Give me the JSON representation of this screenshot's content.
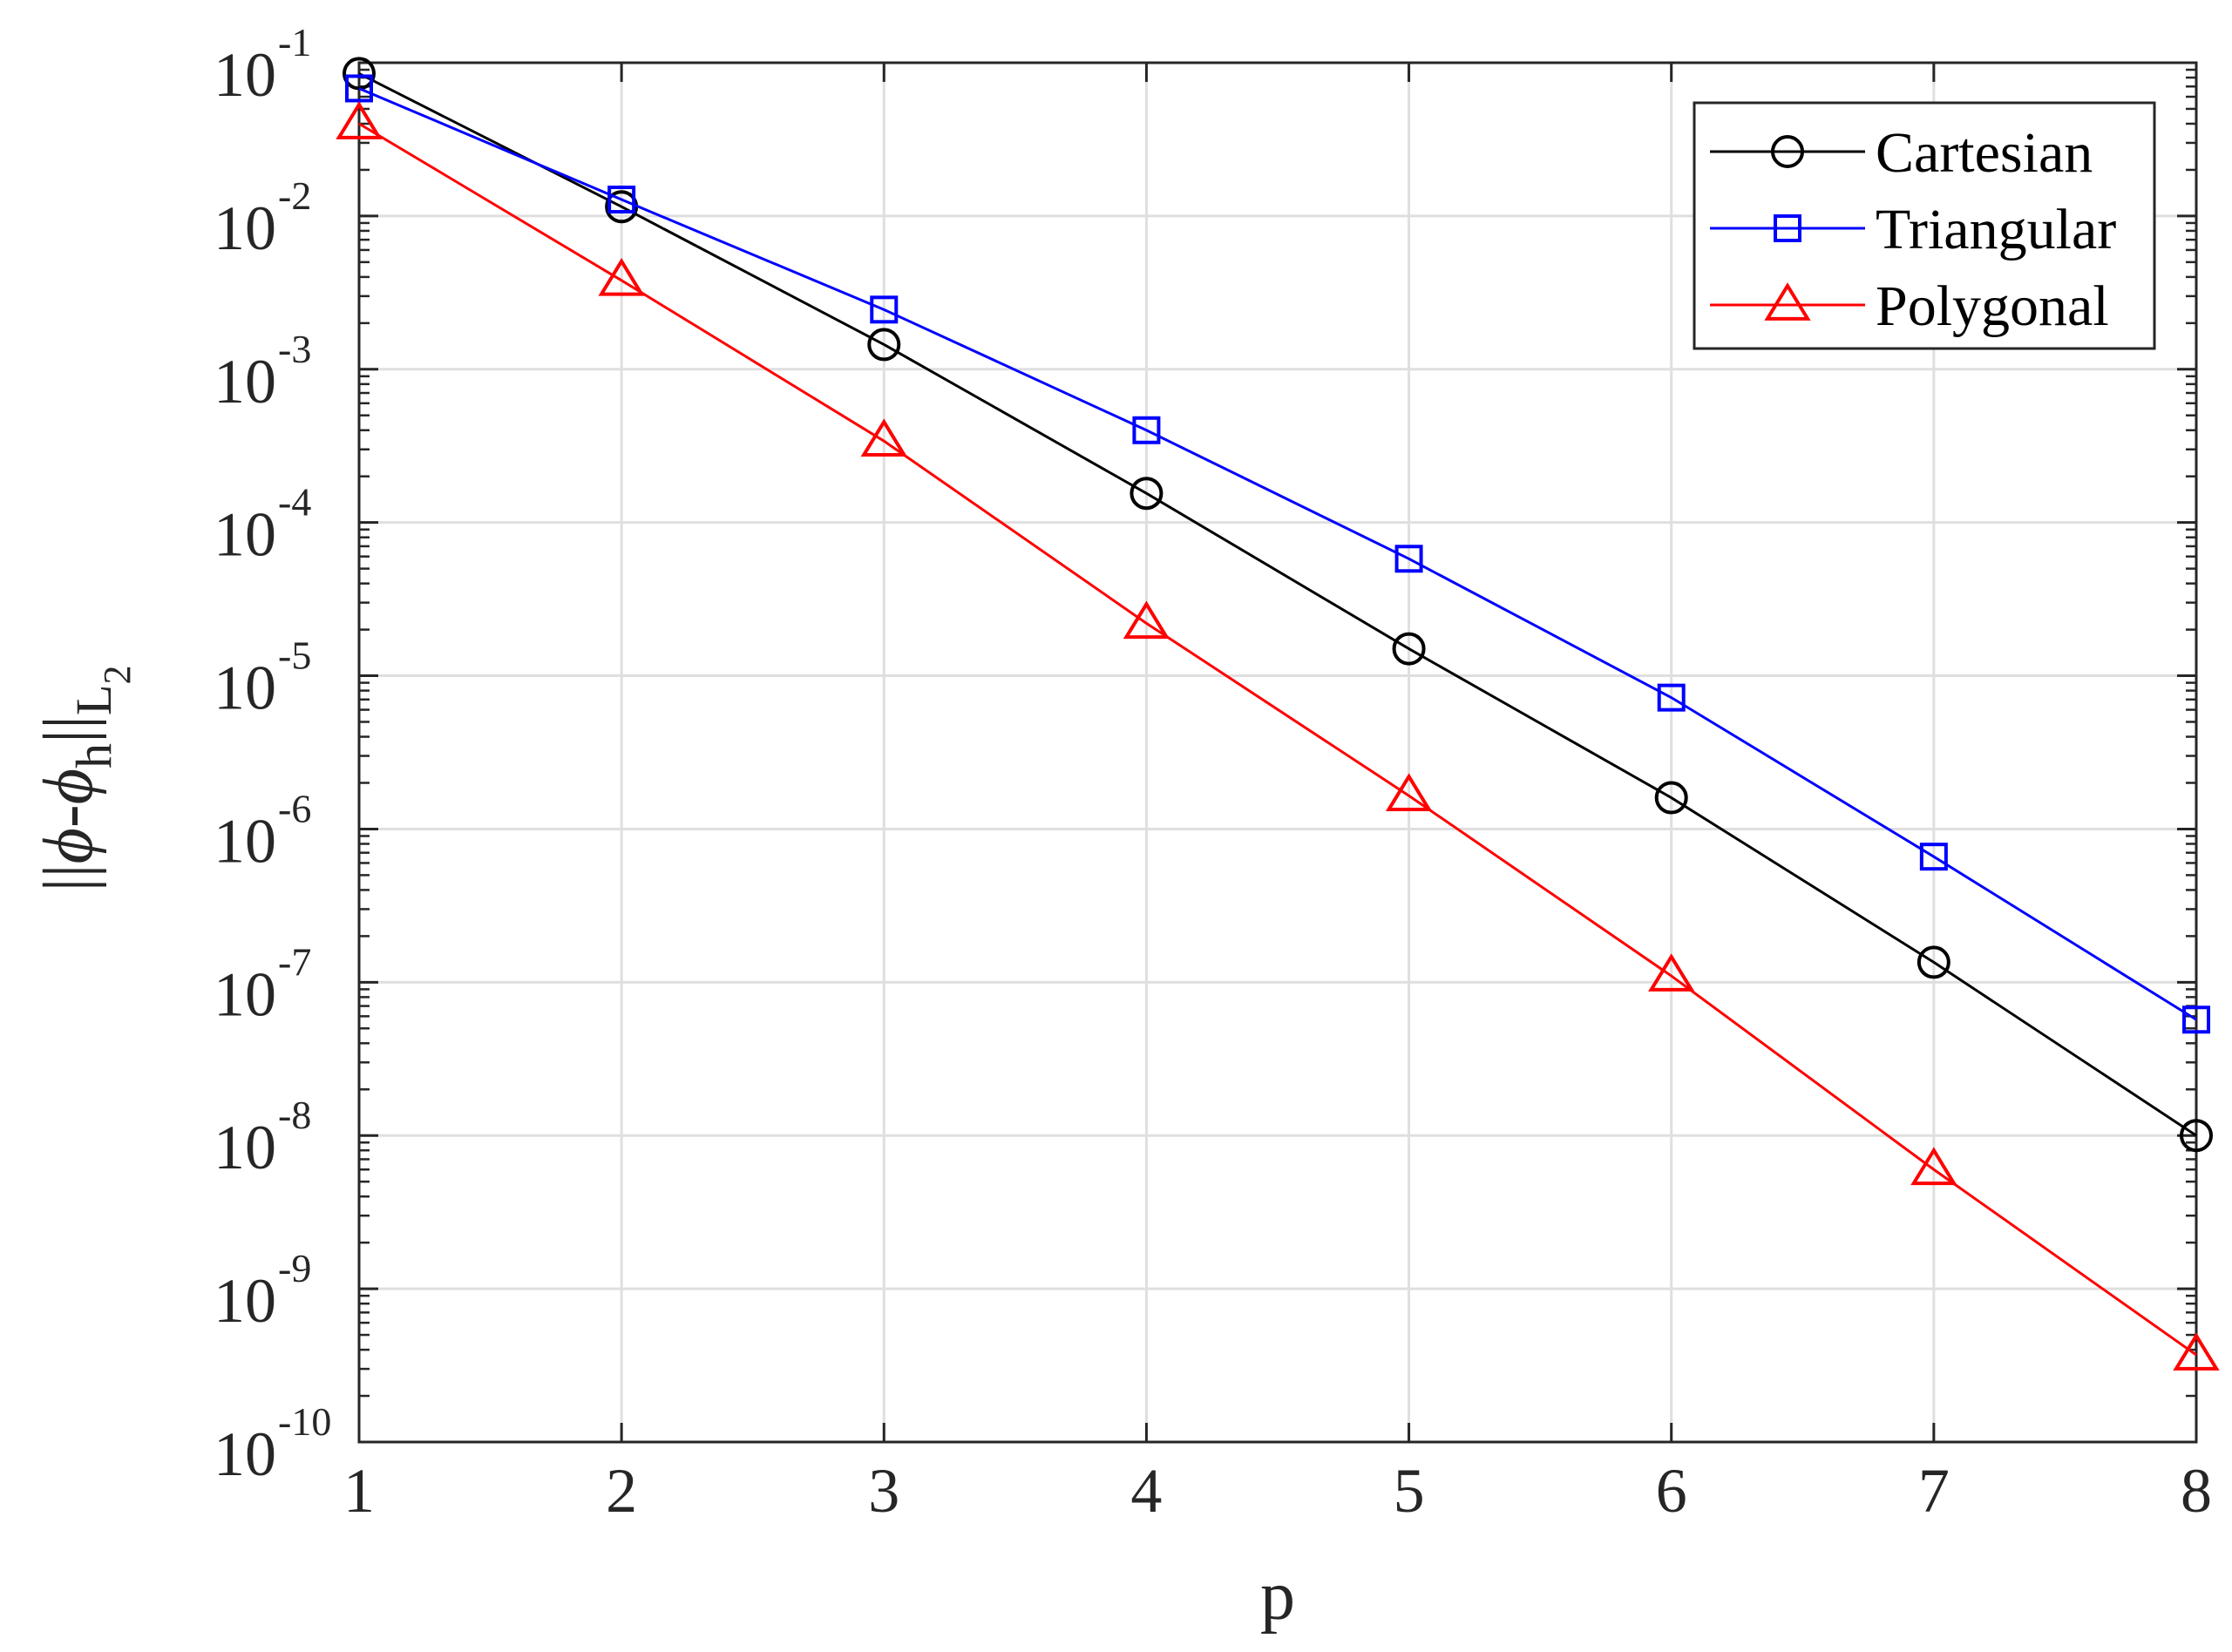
{
  "chart_data": {
    "type": "line",
    "title": "",
    "xlabel": "p",
    "ylabel": {
      "parts": [
        {
          "text": "||",
          "style": "normal"
        },
        {
          "text": "ϕ",
          "style": "italic"
        },
        {
          "text": "-",
          "style": "normal"
        },
        {
          "text": "ϕ",
          "style": "italic"
        },
        {
          "text": "h",
          "style": "sub"
        },
        {
          "text": "||",
          "style": "normal"
        },
        {
          "text": "L",
          "style": "sub"
        },
        {
          "text": "2",
          "style": "subsub"
        }
      ]
    },
    "xlim": [
      1,
      8
    ],
    "ylim": [
      1e-10,
      0.1
    ],
    "yscale": "log",
    "grid": true,
    "legend_position": "top-right",
    "x_ticks": [
      {
        "value": 1,
        "label": "1"
      },
      {
        "value": 2,
        "label": "2"
      },
      {
        "value": 3,
        "label": "3"
      },
      {
        "value": 4,
        "label": "4"
      },
      {
        "value": 5,
        "label": "5"
      },
      {
        "value": 6,
        "label": "6"
      },
      {
        "value": 7,
        "label": "7"
      },
      {
        "value": 8,
        "label": "8"
      }
    ],
    "y_ticks": [
      {
        "exp": -10,
        "base": "10",
        "sup": "-10"
      },
      {
        "exp": -9,
        "base": "10",
        "sup": "-9"
      },
      {
        "exp": -8,
        "base": "10",
        "sup": "-8"
      },
      {
        "exp": -7,
        "base": "10",
        "sup": "-7"
      },
      {
        "exp": -6,
        "base": "10",
        "sup": "-6"
      },
      {
        "exp": -5,
        "base": "10",
        "sup": "-5"
      },
      {
        "exp": -4,
        "base": "10",
        "sup": "-4"
      },
      {
        "exp": -3,
        "base": "10",
        "sup": "-3"
      },
      {
        "exp": -2,
        "base": "10",
        "sup": "-2"
      },
      {
        "exp": -1,
        "base": "10",
        "sup": "-1"
      }
    ],
    "x": [
      1,
      2,
      3,
      4,
      5,
      6,
      7,
      8
    ],
    "series": [
      {
        "name": "Cartesian",
        "color": "#000000",
        "marker": "circle",
        "values": [
          0.085,
          0.0115,
          0.00145,
          0.000155,
          1.5e-05,
          1.6e-06,
          1.35e-07,
          1e-08
        ]
      },
      {
        "name": "Triangular",
        "color": "#0000ff",
        "marker": "square",
        "values": [
          0.068,
          0.0128,
          0.00245,
          0.0004,
          5.8e-05,
          7.2e-06,
          6.6e-07,
          5.7e-08
        ]
      },
      {
        "name": "Polygonal",
        "color": "#ff0000",
        "marker": "triangle",
        "values": [
          0.04,
          0.0038,
          0.00034,
          2.2e-05,
          1.65e-06,
          1.1e-07,
          6e-09,
          3.7e-10
        ]
      }
    ]
  }
}
